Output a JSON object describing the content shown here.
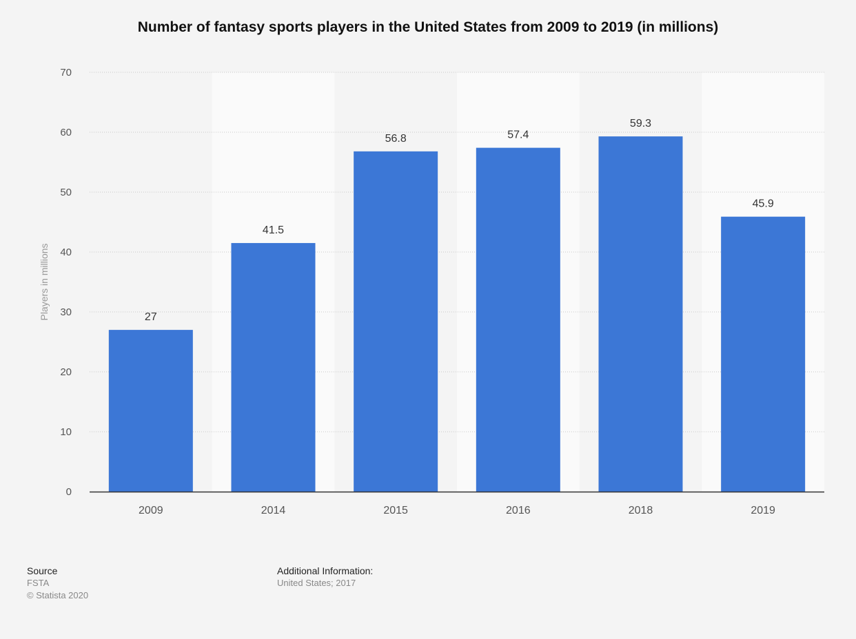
{
  "chart_data": {
    "type": "bar",
    "title": "Number of fantasy sports players in the United States from 2009 to 2019 (in millions)",
    "xlabel": "",
    "ylabel": "Players in millions",
    "categories": [
      "2009",
      "2014",
      "2015",
      "2016",
      "2018",
      "2019"
    ],
    "values": [
      27,
      41.5,
      56.8,
      57.4,
      59.3,
      45.9
    ],
    "data_labels": [
      "27",
      "41.5",
      "56.8",
      "57.4",
      "59.3",
      "45.9"
    ],
    "ylim": [
      0,
      70
    ],
    "yticks": [
      0,
      10,
      20,
      30,
      40,
      50,
      60,
      70
    ],
    "grid": true,
    "bar_color": "#3c77d6",
    "alt_band_color": "#fafafa"
  },
  "footer": {
    "source_heading": "Source",
    "source_name": "FSTA",
    "copyright": "© Statista 2020",
    "additional_heading": "Additional Information:",
    "additional_text": "United States; 2017"
  }
}
